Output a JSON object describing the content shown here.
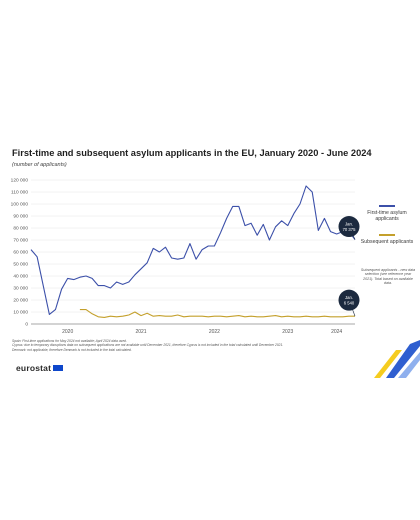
{
  "header": {
    "title": "First-time and subsequent asylum applicants in the EU, January 2020 - June 2024",
    "subtitle": "(number of applicants)"
  },
  "legend": {
    "first": "First-time asylum applicants",
    "subsequent": "Subsequent applicants",
    "note": "Subsequent applicants - new data selection (see reference year 2021). Total based on available data."
  },
  "notes": {
    "line1": "Spain: First-time applications for May 2024 not available; April 2024 data used.",
    "line2": "Cyprus: due to temporary disruptions data on subsequent applications are not available until December 2021, therefore Cyprus is not included in the total calculated until December 2021.",
    "line3": "Denmark: not applicable, therefore Denmark is not included in the total calculated."
  },
  "footer": {
    "logo": "eurostat"
  },
  "colors": {
    "first": "#3c50a9",
    "subsequent": "#c4a02c",
    "callout": "#1c2a3f",
    "axis": "#8a8a8a",
    "accent_blue": "#2f5fd0",
    "accent_yellow": "#f5cc1f"
  },
  "chart_data": {
    "type": "line",
    "ylim": [
      0,
      120000
    ],
    "yticks": [
      0,
      10000,
      20000,
      30000,
      40000,
      50000,
      60000,
      70000,
      80000,
      90000,
      100000,
      110000,
      120000
    ],
    "ytick_labels": [
      "0",
      "10 000",
      "20 000",
      "30 000",
      "40 000",
      "50 000",
      "60 000",
      "70 000",
      "80 000",
      "90 000",
      "100 000",
      "110 000",
      "120 000"
    ],
    "x_start": "2020-01",
    "x_end": "2024-06",
    "x_tick_labels": [
      {
        "label": "2020",
        "month": "2020-07"
      },
      {
        "label": "2021",
        "month": "2021-07"
      },
      {
        "label": "2022",
        "month": "2022-07"
      },
      {
        "label": "2023",
        "month": "2023-07"
      },
      {
        "label": "2024",
        "month": "2024-03"
      }
    ],
    "series": [
      {
        "name": "First-time asylum applicants",
        "start": "2020-01",
        "values": [
          62000,
          56000,
          32000,
          8000,
          12000,
          29000,
          38000,
          37000,
          39000,
          40000,
          38000,
          32000,
          32000,
          30000,
          35000,
          33000,
          35000,
          41000,
          46000,
          51000,
          63000,
          60000,
          64000,
          55000,
          54000,
          55000,
          67000,
          54000,
          62000,
          65000,
          65000,
          76000,
          88000,
          98000,
          98000,
          82000,
          84000,
          74000,
          83000,
          70000,
          81000,
          86000,
          82000,
          92000,
          100000,
          115000,
          110000,
          78000,
          88000,
          77000,
          75000,
          77000,
          77000,
          70375
        ]
      },
      {
        "name": "Subsequent applicants",
        "start": "2020-09",
        "values": [
          12000,
          12000,
          8500,
          6000,
          5500,
          6500,
          6000,
          6500,
          7500,
          10000,
          7000,
          9000,
          6500,
          7000,
          6500,
          6500,
          7500,
          6000,
          6500,
          6500,
          6500,
          6000,
          6500,
          6500,
          6000,
          6500,
          7000,
          6000,
          6500,
          6000,
          6000,
          6500,
          7000,
          6000,
          6500,
          6000,
          6000,
          6500,
          6000,
          6000,
          6500,
          6000,
          6000,
          6000,
          6500,
          6540
        ]
      }
    ],
    "callouts": [
      {
        "series": 0,
        "text": "Jan. 70 375"
      },
      {
        "series": 1,
        "text": "Jan. 6 540"
      }
    ],
    "grid": true,
    "legend_position": "right"
  }
}
